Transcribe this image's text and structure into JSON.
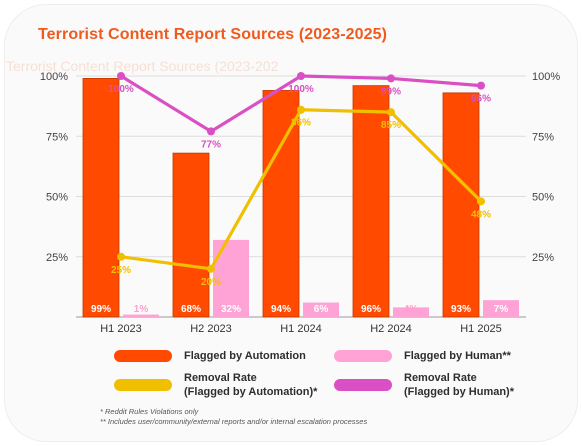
{
  "chart_data": {
    "type": "bar",
    "title": "Terrorist Content Report Sources (2023-2025)",
    "categories": [
      "H1 2023",
      "H2 2023",
      "H1 2024",
      "H2 2024",
      "H1 2025"
    ],
    "ylim": [
      0,
      100
    ],
    "left_ticks": [
      "100%",
      "75%",
      "50%",
      "25%"
    ],
    "right_ticks": [
      "100%",
      "75%",
      "50%",
      "25%"
    ],
    "series": [
      {
        "name": "Flagged by Automation",
        "type": "bar",
        "color": "#ff4a00",
        "values": [
          99,
          68,
          94,
          96,
          93
        ],
        "labels": [
          "99%",
          "68%",
          "94%",
          "96%",
          "93%"
        ]
      },
      {
        "name": "Flagged by Human**",
        "type": "bar",
        "color": "#ffa3d6",
        "values": [
          1,
          32,
          6,
          4,
          7
        ],
        "labels": [
          "1%",
          "32%",
          "6%",
          "4%",
          "7%"
        ]
      },
      {
        "name": "Removal Rate\n(Flagged by Automation)*",
        "type": "line",
        "color": "#f0c000",
        "values": [
          25,
          20,
          86,
          85,
          48
        ],
        "labels": [
          "25%",
          "20%",
          "86%",
          "85%",
          "48%"
        ]
      },
      {
        "name": "Removal Rate\n(Flagged by Human)*",
        "type": "line",
        "color": "#d94fc4",
        "values": [
          100,
          77,
          100,
          99,
          96
        ],
        "labels": [
          "100%",
          "77%",
          "100%",
          "99%",
          "96%"
        ]
      }
    ],
    "grid": true,
    "legend_position": "bottom"
  },
  "ghost_text": "Terrorist Content Report Sources (2023-202",
  "footnotes": [
    "*  Reddit Rules Violations only",
    "** Includes user/community/external reports and/or internal escalation processes"
  ]
}
